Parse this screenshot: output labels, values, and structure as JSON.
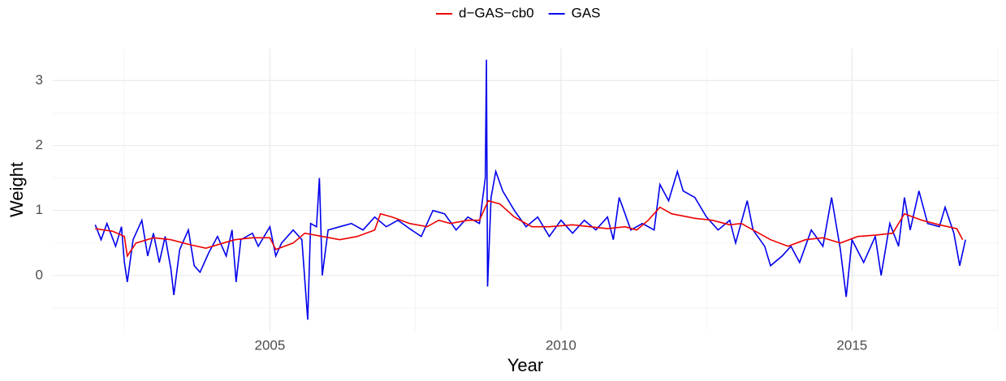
{
  "chart_data": {
    "type": "line",
    "x_label": "Year",
    "y_label": "Weight",
    "xlim": [
      2001.27,
      2017.52
    ],
    "xticks": [
      2005,
      2010,
      2015
    ],
    "ylim": [
      -0.85,
      3.49
    ],
    "yticks": [
      0,
      1,
      2,
      3
    ],
    "grid": true,
    "legend": "top",
    "series": [
      {
        "name": "d−GAS−cb0",
        "color": "#ee0000",
        "x": [
          2002.0,
          2002.3,
          2002.5,
          2002.55,
          2002.7,
          2003.0,
          2003.3,
          2003.6,
          2003.9,
          2004.2,
          2004.4,
          2004.7,
          2005.0,
          2005.1,
          2005.4,
          2005.6,
          2005.9,
          2006.2,
          2006.5,
          2006.8,
          2006.9,
          2007.1,
          2007.4,
          2007.7,
          2007.9,
          2008.1,
          2008.4,
          2008.6,
          2008.75,
          2008.95,
          2009.2,
          2009.5,
          2009.8,
          2010.2,
          2010.5,
          2010.8,
          2011.1,
          2011.3,
          2011.5,
          2011.7,
          2011.9,
          2012.3,
          2012.6,
          2012.9,
          2013.1,
          2013.3,
          2013.6,
          2013.9,
          2014.2,
          2014.5,
          2014.8,
          2015.1,
          2015.4,
          2015.7,
          2015.9,
          2016.2,
          2016.5,
          2016.8,
          2016.9
        ],
        "values": [
          0.72,
          0.68,
          0.6,
          0.3,
          0.5,
          0.58,
          0.55,
          0.48,
          0.42,
          0.5,
          0.55,
          0.58,
          0.58,
          0.4,
          0.5,
          0.65,
          0.6,
          0.55,
          0.6,
          0.7,
          0.95,
          0.9,
          0.8,
          0.75,
          0.85,
          0.8,
          0.85,
          0.85,
          1.15,
          1.1,
          0.9,
          0.75,
          0.75,
          0.78,
          0.75,
          0.72,
          0.75,
          0.7,
          0.85,
          1.05,
          0.95,
          0.88,
          0.85,
          0.78,
          0.8,
          0.7,
          0.55,
          0.45,
          0.55,
          0.58,
          0.5,
          0.6,
          0.62,
          0.65,
          0.95,
          0.85,
          0.78,
          0.72,
          0.55
        ]
      },
      {
        "name": "GAS",
        "color": "#0000ee",
        "x": [
          2002.0,
          2002.1,
          2002.2,
          2002.35,
          2002.45,
          2002.5,
          2002.55,
          2002.65,
          2002.8,
          2002.9,
          2003.0,
          2003.1,
          2003.2,
          2003.3,
          2003.35,
          2003.45,
          2003.6,
          2003.7,
          2003.8,
          2003.95,
          2004.1,
          2004.25,
          2004.35,
          2004.42,
          2004.5,
          2004.7,
          2004.8,
          2005.0,
          2005.1,
          2005.2,
          2005.4,
          2005.55,
          2005.65,
          2005.7,
          2005.8,
          2005.85,
          2005.9,
          2006.0,
          2006.2,
          2006.4,
          2006.6,
          2006.8,
          2007.0,
          2007.2,
          2007.4,
          2007.6,
          2007.8,
          2008.0,
          2008.2,
          2008.4,
          2008.6,
          2008.7,
          2008.72,
          2008.74,
          2008.8,
          2008.88,
          2009.0,
          2009.2,
          2009.4,
          2009.6,
          2009.8,
          2010.0,
          2010.2,
          2010.4,
          2010.6,
          2010.8,
          2010.9,
          2011.0,
          2011.2,
          2011.4,
          2011.6,
          2011.7,
          2011.85,
          2012.0,
          2012.1,
          2012.3,
          2012.5,
          2012.7,
          2012.9,
          2013.0,
          2013.2,
          2013.3,
          2013.5,
          2013.6,
          2013.8,
          2013.95,
          2014.1,
          2014.3,
          2014.5,
          2014.65,
          2014.8,
          2014.9,
          2015.0,
          2015.2,
          2015.4,
          2015.5,
          2015.65,
          2015.8,
          2015.9,
          2016.0,
          2016.15,
          2016.3,
          2016.5,
          2016.6,
          2016.75,
          2016.85,
          2016.95
        ],
        "values": [
          0.78,
          0.55,
          0.8,
          0.45,
          0.75,
          0.2,
          -0.1,
          0.55,
          0.85,
          0.3,
          0.65,
          0.2,
          0.6,
          0.1,
          -0.3,
          0.4,
          0.7,
          0.15,
          0.05,
          0.35,
          0.6,
          0.3,
          0.7,
          -0.1,
          0.55,
          0.65,
          0.45,
          0.75,
          0.3,
          0.5,
          0.7,
          0.55,
          -0.68,
          0.8,
          0.75,
          1.5,
          0.0,
          0.7,
          0.75,
          0.8,
          0.7,
          0.9,
          0.75,
          0.85,
          0.72,
          0.6,
          1.0,
          0.95,
          0.7,
          0.9,
          0.8,
          1.5,
          3.32,
          -0.17,
          1.2,
          1.6,
          1.3,
          1.0,
          0.75,
          0.9,
          0.6,
          0.85,
          0.65,
          0.85,
          0.7,
          0.9,
          0.55,
          1.2,
          0.7,
          0.8,
          0.7,
          1.4,
          1.15,
          1.6,
          1.3,
          1.2,
          0.9,
          0.7,
          0.85,
          0.5,
          1.15,
          0.7,
          0.45,
          0.15,
          0.3,
          0.45,
          0.2,
          0.7,
          0.45,
          1.2,
          0.4,
          -0.33,
          0.55,
          0.2,
          0.6,
          0.0,
          0.8,
          0.45,
          1.2,
          0.7,
          1.3,
          0.8,
          0.75,
          1.05,
          0.65,
          0.15,
          0.55
        ]
      }
    ]
  }
}
